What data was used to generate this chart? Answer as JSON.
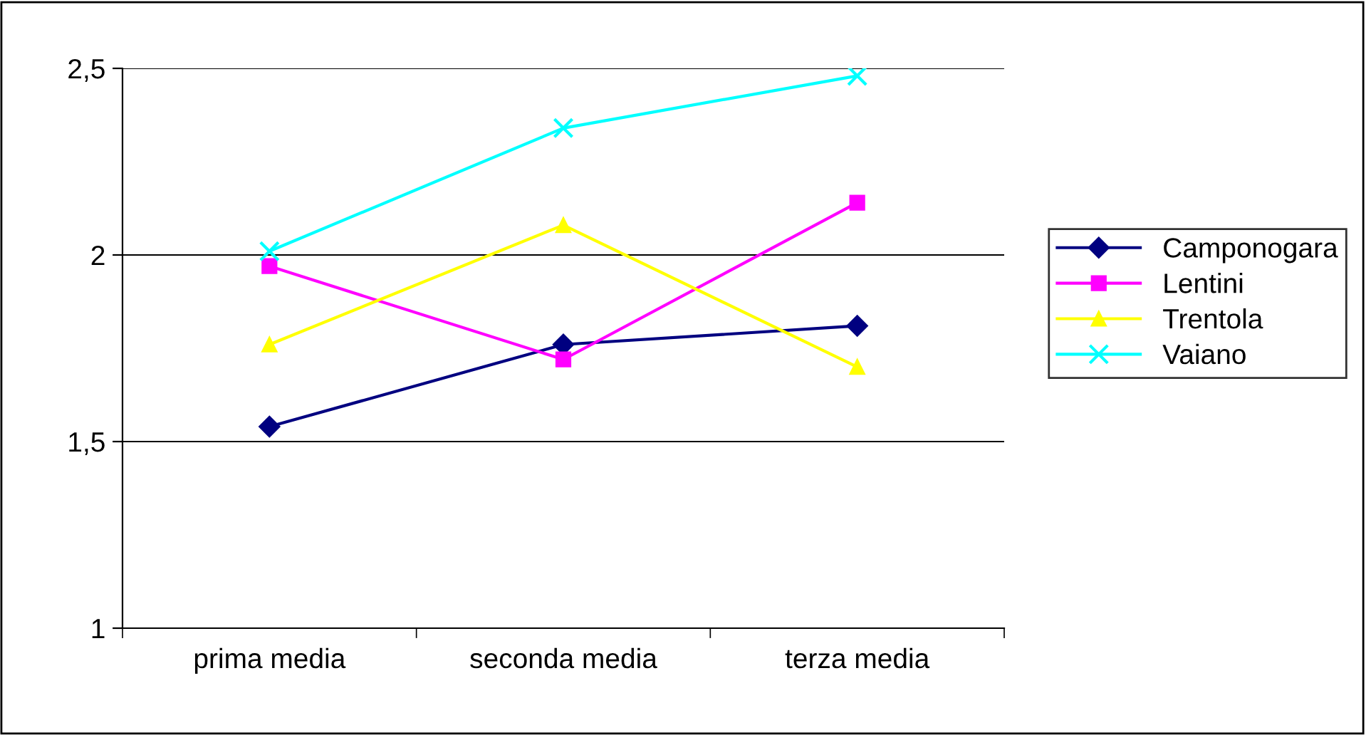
{
  "chart_data": {
    "type": "line",
    "categories": [
      "prima media",
      "seconda media",
      "terza media"
    ],
    "series": [
      {
        "name": "Camponogara",
        "color": "#000080",
        "marker": "diamond",
        "values": [
          1.54,
          1.76,
          1.81
        ]
      },
      {
        "name": "Lentini",
        "color": "#ff00ff",
        "marker": "square",
        "values": [
          1.97,
          1.72,
          2.14
        ]
      },
      {
        "name": "Trentola",
        "color": "#ffff00",
        "marker": "triangle",
        "values": [
          1.76,
          2.08,
          1.7
        ]
      },
      {
        "name": "Vaiano",
        "color": "#00ffff",
        "marker": "cross",
        "values": [
          2.01,
          2.34,
          2.48
        ]
      }
    ],
    "ylim": [
      1,
      2.5
    ],
    "yticks": [
      {
        "value": 1,
        "label": "1"
      },
      {
        "value": 1.5,
        "label": "1,5"
      },
      {
        "value": 2,
        "label": "2"
      },
      {
        "value": 2.5,
        "label": "2,5"
      }
    ],
    "grid": "y",
    "legend": "right",
    "line_style": "solid"
  }
}
